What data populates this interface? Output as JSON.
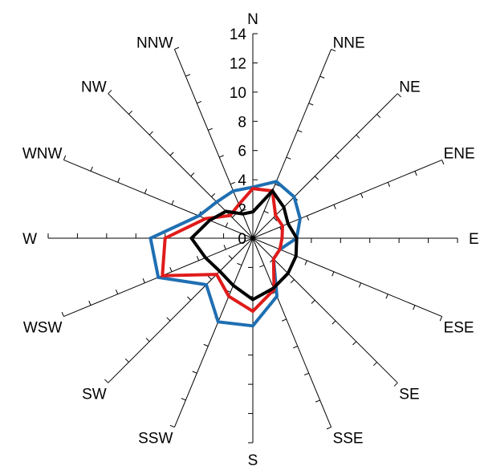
{
  "chart_data": {
    "type": "radar",
    "categories": [
      "N",
      "NNE",
      "NE",
      "ENE",
      "E",
      "ESE",
      "SE",
      "SSE",
      "S",
      "SSW",
      "SW",
      "WSW",
      "W",
      "WNW",
      "NW",
      "NNW"
    ],
    "rlim": [
      0,
      14
    ],
    "radial_ticks": [
      "0",
      "2",
      "4",
      "6",
      "8",
      "10",
      "12",
      "14"
    ],
    "series": [
      {
        "color": "#1f6fb2",
        "values": [
          3.5,
          4.2,
          4.0,
          3.5,
          3.0,
          2.0,
          2.0,
          4.3,
          6.0,
          6.2,
          4.5,
          7.0,
          7.0,
          4.0,
          3.5,
          3.5
        ]
      },
      {
        "color": "#e01b1b",
        "values": [
          3.4,
          3.5,
          2.2,
          2.2,
          2.0,
          2.0,
          2.0,
          3.8,
          5.0,
          4.3,
          3.5,
          6.7,
          6.0,
          3.5,
          2.2,
          2.5
        ]
      },
      {
        "color": "#000000",
        "values": [
          1.8,
          3.5,
          3.0,
          2.6,
          3.0,
          3.2,
          3.4,
          3.7,
          4.2,
          3.5,
          3.2,
          3.5,
          4.2,
          3.2,
          2.6,
          1.8
        ]
      }
    ]
  }
}
